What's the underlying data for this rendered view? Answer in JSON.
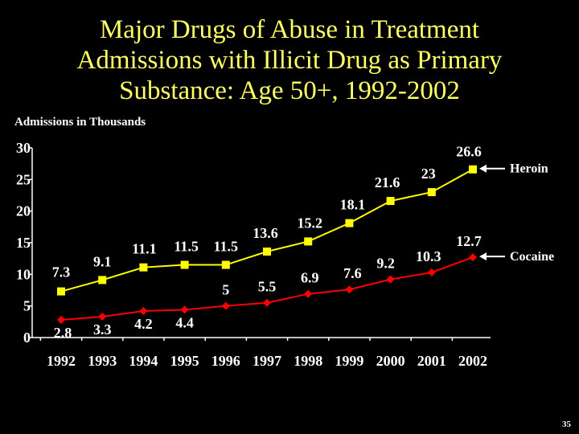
{
  "title": "Major Drugs of Abuse in Treatment\nAdmissions with Illicit Drug as Primary\nSubstance: Age 50+, 1992-2002",
  "page_number": "35",
  "colors": {
    "background": "#000000",
    "title": "#ffff66",
    "heroin": "#ffff00",
    "cocaine": "#ff0000",
    "text": "#ffffff"
  },
  "chart_data": {
    "type": "line",
    "title": "Major Drugs of Abuse in Treatment Admissions with Illicit Drug as Primary Substance: Age 50+, 1992-2002",
    "xlabel": "",
    "ylabel": "Admissions in Thousands",
    "ylim": [
      0,
      30
    ],
    "yticks": [
      "0",
      "5",
      "10",
      "15",
      "20",
      "25",
      "30"
    ],
    "categories": [
      "1992",
      "1993",
      "1994",
      "1995",
      "1996",
      "1997",
      "1998",
      "1999",
      "2000",
      "2001",
      "2002"
    ],
    "grid": false,
    "legend": "direct labels at right with arrows",
    "series": [
      {
        "name": "Heroin",
        "color": "#ffff00",
        "marker": "square",
        "values": [
          7.3,
          9.1,
          11.1,
          11.5,
          11.5,
          13.6,
          15.2,
          18.1,
          21.6,
          23,
          26.6
        ],
        "labels": [
          "7.3",
          "9.1",
          "11.1",
          "11.5",
          "11.5",
          "13.6",
          "15.2",
          "18.1",
          "21.6",
          "23",
          "26.6"
        ]
      },
      {
        "name": "Cocaine",
        "color": "#ff0000",
        "marker": "diamond",
        "values": [
          2.8,
          3.3,
          4.2,
          4.4,
          5,
          5.5,
          6.9,
          7.6,
          9.2,
          10.3,
          12.7
        ],
        "labels": [
          "2.8",
          "3.3",
          "4.2",
          "4.4",
          "5",
          "5.5",
          "6.9",
          "7.6",
          "9.2",
          "10.3",
          "12.7"
        ]
      }
    ]
  }
}
